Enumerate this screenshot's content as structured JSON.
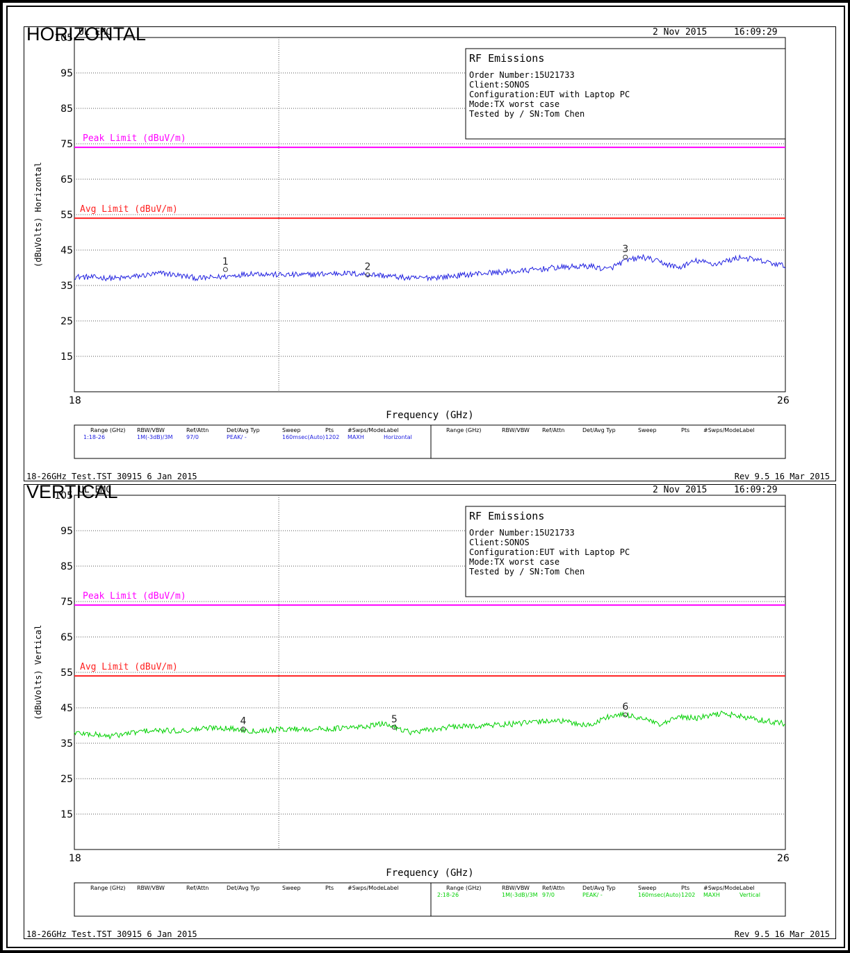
{
  "panels": [
    {
      "section_title": "HORIZONTAL",
      "header_left": "UL EMC",
      "header_date": "2 Nov 2015",
      "header_time": "16:09:29",
      "info_box": {
        "title": "RF Emissions",
        "lines": [
          "Order Number:15U21733",
          "Client:SONOS",
          "Configuration:EUT with Laptop PC",
          "Mode:TX worst case",
          "Tested by / SN:Tom Chen"
        ]
      },
      "footer_left": "18-26GHz Test.TST 30915  6 Jan 2015",
      "footer_right": "Rev 9.5 16 Mar 2015",
      "settings_headers": [
        "Range (GHz)",
        "RBW/VBW",
        "Ref/Attn",
        "Det/Avg Typ",
        "Sweep",
        "Pts",
        "#Swps/Mode",
        "Label"
      ],
      "settings_left": [
        "1:18-26",
        "1M(-3dB)/3M",
        "97/0",
        "PEAK/ -",
        "160msec(Auto)",
        "1202",
        "MAXH",
        "Horizontal"
      ],
      "settings_right": [
        "",
        "",
        "",
        "",
        "",
        "",
        "",
        ""
      ],
      "trace_color": "#2020e0",
      "chart_data": {
        "type": "line",
        "title": "",
        "xlabel": "Frequency (GHz)",
        "ylabel": "(dBuVolts) Horizontal",
        "xlim": [
          18,
          26
        ],
        "ylim": [
          5,
          105
        ],
        "y_ticks": [
          "105",
          "95",
          "85",
          "75",
          "65",
          "55",
          "45",
          "35",
          "25",
          "15"
        ],
        "x_tick_labels": [
          "18",
          "26"
        ],
        "grid": true,
        "limits": [
          {
            "name": "Peak Limit (dBuV/m)",
            "value": 74,
            "color": "#ff00ff"
          },
          {
            "name": "Avg Limit (dBuV/m)",
            "value": 54,
            "color": "#ff2020"
          }
        ],
        "series": [
          {
            "values_x": [
              18.0,
              18.5,
              19.0,
              19.4,
              19.7,
              20.0,
              20.3,
              20.6,
              21.0,
              21.4,
              21.8,
              22.2,
              22.6,
              23.0,
              23.4,
              23.8,
              24.0,
              24.2,
              24.4,
              24.6,
              24.8,
              25.0,
              25.2,
              25.5,
              25.8,
              26.0
            ],
            "values_y": [
              37.5,
              37.0,
              38.5,
              37.0,
              37.5,
              38.5,
              38.0,
              38.0,
              38.5,
              38.0,
              37.0,
              37.5,
              38.5,
              39.0,
              40.0,
              40.5,
              39.5,
              42.0,
              43.0,
              41.5,
              40.0,
              42.0,
              41.0,
              43.0,
              41.5,
              40.5
            ]
          }
        ],
        "markers": [
          {
            "label": "1",
            "x": 19.7,
            "y": 39.5
          },
          {
            "label": "2",
            "x": 21.3,
            "y": 38.0
          },
          {
            "label": "3",
            "x": 24.2,
            "y": 43.0
          }
        ]
      }
    },
    {
      "section_title": "VERTICAL",
      "header_left": "UL EMC",
      "header_date": "2 Nov 2015",
      "header_time": "16:09:29",
      "info_box": {
        "title": "RF Emissions",
        "lines": [
          "Order Number:15U21733",
          "Client:SONOS",
          "Configuration:EUT with Laptop PC",
          "Mode:TX worst case",
          "Tested by / SN:Tom Chen"
        ]
      },
      "footer_left": "18-26GHz Test.TST 30915  6 Jan 2015",
      "footer_right": "Rev 9.5 16 Mar 2015",
      "settings_headers": [
        "Range (GHz)",
        "RBW/VBW",
        "Ref/Attn",
        "Det/Avg Typ",
        "Sweep",
        "Pts",
        "#Swps/Mode",
        "Label"
      ],
      "settings_left": [
        "",
        "",
        "",
        "",
        "",
        "",
        "",
        ""
      ],
      "settings_right": [
        "2:18-26",
        "1M(-3dB)/3M",
        "97/0",
        "PEAK/ -",
        "160msec(Auto)",
        "1202",
        "MAXH",
        "Vertical"
      ],
      "trace_color": "#00d000",
      "chart_data": {
        "type": "line",
        "title": "",
        "xlabel": "Frequency (GHz)",
        "ylabel": "(dBuVolts) Vertical",
        "xlim": [
          18,
          26
        ],
        "ylim": [
          5,
          105
        ],
        "y_ticks": [
          "105",
          "95",
          "85",
          "75",
          "65",
          "55",
          "45",
          "35",
          "25",
          "15"
        ],
        "x_tick_labels": [
          "18",
          "26"
        ],
        "grid": true,
        "limits": [
          {
            "name": "Peak Limit (dBuV/m)",
            "value": 74,
            "color": "#ff00ff"
          },
          {
            "name": "Avg Limit (dBuV/m)",
            "value": 54,
            "color": "#ff2020"
          }
        ],
        "series": [
          {
            "values_x": [
              18.0,
              18.4,
              18.8,
              19.2,
              19.6,
              20.0,
              20.4,
              20.8,
              21.2,
              21.5,
              21.8,
              22.2,
              22.6,
              23.0,
              23.4,
              23.8,
              24.0,
              24.2,
              24.4,
              24.6,
              24.8,
              25.0,
              25.3,
              25.6,
              26.0
            ],
            "values_y": [
              38.0,
              37.0,
              38.5,
              38.5,
              39.5,
              38.5,
              39.0,
              39.0,
              39.5,
              40.5,
              38.0,
              39.5,
              40.0,
              40.5,
              41.5,
              40.0,
              42.5,
              43.0,
              42.0,
              40.0,
              42.5,
              42.0,
              43.5,
              42.0,
              40.5
            ]
          }
        ],
        "markers": [
          {
            "label": "4",
            "x": 19.9,
            "y": 39.0
          },
          {
            "label": "5",
            "x": 21.6,
            "y": 39.5
          },
          {
            "label": "6",
            "x": 24.2,
            "y": 43.0
          }
        ]
      }
    }
  ]
}
